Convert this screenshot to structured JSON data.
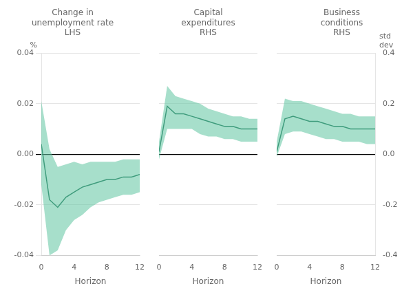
{
  "chart_data": [
    {
      "type": "line",
      "title": "Change in\nunemployment rate\nLHS",
      "xlabel": "Horizon",
      "ylabel": "%",
      "x": [
        0,
        1,
        2,
        3,
        4,
        5,
        6,
        7,
        8,
        9,
        10,
        11,
        12
      ],
      "series": [
        {
          "type": "band",
          "color": "#5ec4a0",
          "lower": [
            -0.012,
            -0.04,
            -0.038,
            -0.03,
            -0.026,
            -0.024,
            -0.021,
            -0.019,
            -0.018,
            -0.017,
            -0.016,
            -0.016,
            -0.015
          ],
          "upper": [
            0.021,
            0.002,
            -0.005,
            -0.004,
            -0.003,
            -0.004,
            -0.003,
            -0.003,
            -0.003,
            -0.003,
            -0.002,
            -0.002,
            -0.002
          ]
        },
        {
          "type": "line",
          "color": "#1a6b52",
          "values": [
            0.004,
            -0.018,
            -0.021,
            -0.017,
            -0.015,
            -0.013,
            -0.012,
            -0.011,
            -0.01,
            -0.01,
            -0.009,
            -0.009,
            -0.008
          ]
        }
      ],
      "xlim": [
        0,
        12
      ],
      "xticks": [
        0,
        4,
        8,
        12
      ],
      "ylim": [
        -0.04,
        0.04
      ],
      "yticks": [
        -0.04,
        -0.02,
        {
          "value": 0,
          "label": "0.00"
        },
        0.02,
        0.04
      ],
      "grid": true
    },
    {
      "type": "line",
      "title": "Capital\nexpenditures\nRHS",
      "xlabel": "Horizon",
      "x": [
        0,
        1,
        2,
        3,
        4,
        5,
        6,
        7,
        8,
        9,
        10,
        11,
        12
      ],
      "series": [
        {
          "type": "band",
          "color": "#5ec4a0",
          "lower": [
            -0.002,
            0.01,
            0.01,
            0.01,
            0.01,
            0.008,
            0.007,
            0.007,
            0.006,
            0.006,
            0.005,
            0.005,
            0.005
          ],
          "upper": [
            0.005,
            0.027,
            0.023,
            0.022,
            0.021,
            0.02,
            0.018,
            0.017,
            0.016,
            0.015,
            0.015,
            0.014,
            0.014
          ]
        },
        {
          "type": "line",
          "color": "#1a6b52",
          "values": [
            0.001,
            0.019,
            0.016,
            0.016,
            0.015,
            0.014,
            0.013,
            0.012,
            0.011,
            0.011,
            0.01,
            0.01,
            0.01
          ]
        }
      ],
      "xlim": [
        0,
        12
      ],
      "xticks": [
        0,
        4,
        8,
        12
      ],
      "ylim": [
        -0.04,
        0.04
      ],
      "yticks": [
        -0.04,
        -0.02,
        0,
        0.02,
        0.04
      ],
      "tick_labels": "x",
      "grid": true
    },
    {
      "type": "line",
      "title": "Business\nconditions\nRHS",
      "xlabel": "Horizon",
      "y2label": "std\ndev",
      "x": [
        0,
        1,
        2,
        3,
        4,
        5,
        6,
        7,
        8,
        9,
        10,
        11,
        12
      ],
      "series": [
        {
          "type": "band",
          "color": "#5ec4a0",
          "lower": [
            -0.001,
            0.008,
            0.009,
            0.009,
            0.008,
            0.007,
            0.006,
            0.006,
            0.005,
            0.005,
            0.005,
            0.004,
            0.004
          ],
          "upper": [
            0.005,
            0.022,
            0.021,
            0.021,
            0.02,
            0.019,
            0.018,
            0.017,
            0.016,
            0.016,
            0.015,
            0.015,
            0.015
          ]
        },
        {
          "type": "line",
          "color": "#1a6b52",
          "values": [
            0.001,
            0.014,
            0.015,
            0.014,
            0.013,
            0.013,
            0.012,
            0.011,
            0.011,
            0.01,
            0.01,
            0.01,
            0.01
          ]
        }
      ],
      "xlim": [
        0,
        12
      ],
      "xticks": [
        0,
        4,
        8,
        12
      ],
      "ylim": [
        -0.04,
        0.04
      ],
      "yticks": [
        -0.04,
        -0.02,
        0,
        0.02,
        0.04
      ],
      "y2lim": [
        -0.4,
        0.4
      ],
      "y2ticks": [
        -0.4,
        -0.2,
        {
          "value": 0,
          "label": "0.0"
        },
        0.2,
        0.4
      ],
      "tick_labels": "x",
      "grid": true
    }
  ]
}
